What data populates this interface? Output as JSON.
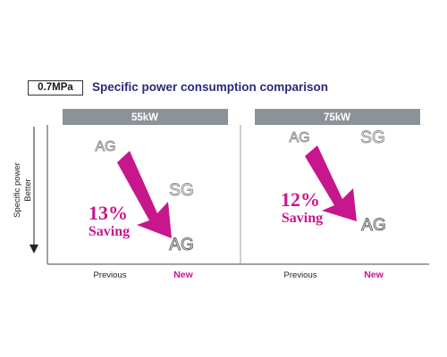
{
  "header": {
    "pressure_label": "0.7MPa",
    "title": "Specific power consumption comparison"
  },
  "yaxis": {
    "label_line1": "Specific power",
    "label_line2": "Better"
  },
  "panels": [
    {
      "heading": "55kW",
      "ag_top": "AG",
      "sg": "SG",
      "ag_bottom": "AG",
      "saving_percent": "13%",
      "saving_word": "Saving",
      "x_previous": "Previous",
      "x_new": "New"
    },
    {
      "heading": "75kW",
      "ag_top": "AG",
      "sg": "SG",
      "ag_bottom": "AG",
      "saving_percent": "12%",
      "saving_word": "Saving",
      "x_previous": "Previous",
      "x_new": "New"
    }
  ],
  "colors": {
    "accent": "#c8168c",
    "heading_bar": "#8b9298",
    "title": "#2a2a7a",
    "model_text": "#8a8a8a"
  }
}
